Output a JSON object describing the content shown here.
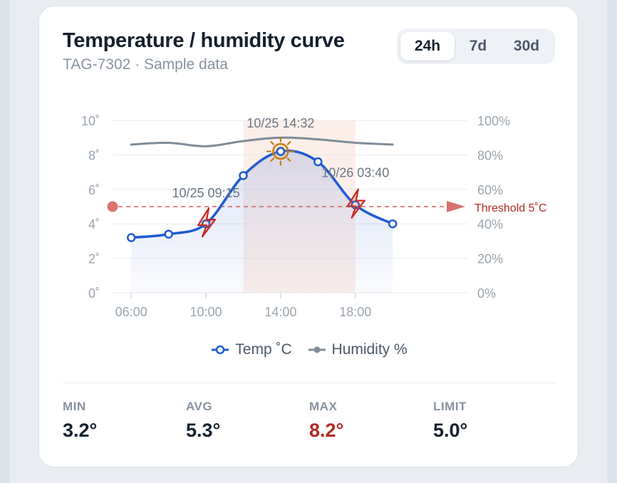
{
  "card": {
    "title": "Temperature / humidity curve",
    "subtitle": "TAG-7302 · Sample data"
  },
  "range_tabs": [
    {
      "label": "24h",
      "active": true
    },
    {
      "label": "7d",
      "active": false
    },
    {
      "label": "30d",
      "active": false
    }
  ],
  "chart_data": {
    "type": "line",
    "x_ticks": [
      "06:00",
      "10:00",
      "14:00",
      "18:00"
    ],
    "x_tick_hours": [
      6,
      10,
      14,
      18
    ],
    "y_left": {
      "ticks": [
        "0˚",
        "2˚",
        "4˚",
        "6˚",
        "8˚",
        "10˚"
      ],
      "tick_values": [
        0,
        2,
        4,
        6,
        8,
        10
      ],
      "range": [
        0,
        10
      ]
    },
    "y_right": {
      "ticks": [
        "0%",
        "20%",
        "40%",
        "60%",
        "80%",
        "100%"
      ],
      "tick_values": [
        0,
        20,
        40,
        60,
        80,
        100
      ],
      "range": [
        0,
        100
      ]
    },
    "x_range_hours": [
      5,
      24
    ],
    "grid": "horizontal",
    "series": [
      {
        "name": "Temp ˚C",
        "axis": "left",
        "color": "#1f5bd1",
        "x_hours": [
          6,
          8,
          10,
          12,
          14,
          16,
          18,
          20
        ],
        "values": [
          3.2,
          3.4,
          4.0,
          6.8,
          8.2,
          7.6,
          5.1,
          4.0
        ]
      },
      {
        "name": "Humidity %",
        "axis": "right",
        "color": "#7f8c98",
        "x_hours": [
          6,
          8,
          10,
          12,
          14,
          16,
          18,
          20
        ],
        "values": [
          86,
          87,
          85,
          88,
          90,
          89,
          87,
          86
        ]
      }
    ],
    "threshold": {
      "value": 5,
      "label": "Threshold 5˚C",
      "color": "#d9736d"
    },
    "highlight_band_hours": [
      12,
      18
    ],
    "annotations": [
      {
        "label": "10/25 09:15",
        "x_hour": 10,
        "value": 4.0,
        "kind": "breach"
      },
      {
        "label": "10/25 14:32",
        "x_hour": 14,
        "value": 8.2,
        "kind": "max"
      },
      {
        "label": "10/26 03:40",
        "x_hour": 18,
        "value": 5.1,
        "kind": "breach"
      }
    ]
  },
  "legend": {
    "temp_label": "Temp ˚C",
    "humidity_label": "Humidity %"
  },
  "stats": [
    {
      "label": "MIN",
      "value": "3.2°",
      "highlight": false
    },
    {
      "label": "AVG",
      "value": "5.3°",
      "highlight": false
    },
    {
      "label": "MAX",
      "value": "8.2°",
      "highlight": true
    },
    {
      "label": "LIMIT",
      "value": "5.0°",
      "highlight": false
    }
  ]
}
